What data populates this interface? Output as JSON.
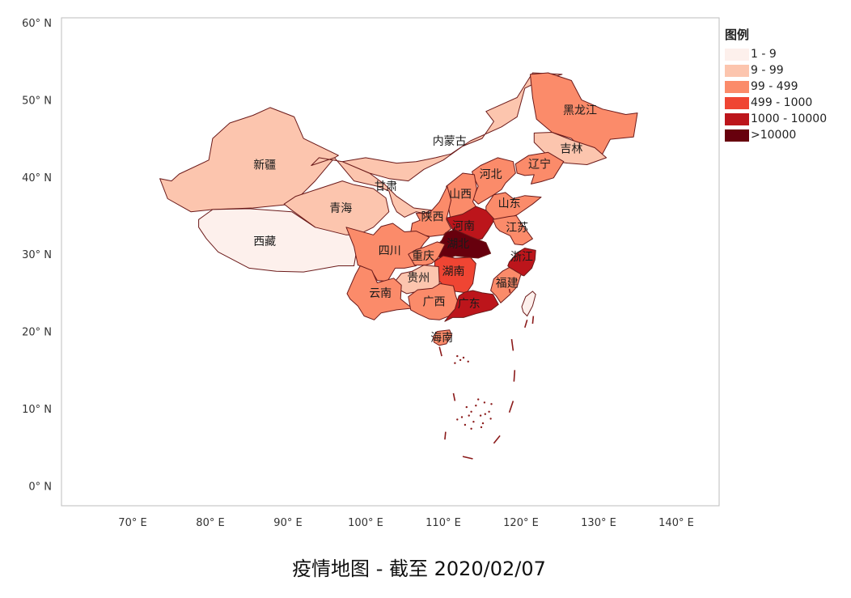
{
  "map": {
    "title": "疫情地图 - 截至 2020/02/07",
    "axes": {
      "x_ticks": [
        "70° E",
        "80° E",
        "90° E",
        "100° E",
        "110° E",
        "120° E",
        "130° E",
        "140° E"
      ],
      "y_ticks": [
        "60° N",
        "50° N",
        "40° N",
        "30° N",
        "20° N",
        "10° N",
        "0° N"
      ]
    },
    "legend": {
      "title": "图例",
      "items": [
        {
          "label": "1 - 9",
          "color": "#fdf0ec"
        },
        {
          "label": "9 - 99",
          "color": "#fcc5ae"
        },
        {
          "label": "99 - 499",
          "color": "#fb8b6a"
        },
        {
          "label": "499 - 1000",
          "color": "#ef4533"
        },
        {
          "label": "1000 - 10000",
          "color": "#bc151b"
        },
        {
          "label": ">10000",
          "color": "#67000d"
        }
      ]
    },
    "regions": [
      {
        "name": "新疆",
        "level": 1
      },
      {
        "name": "西藏",
        "level": 0
      },
      {
        "name": "青海",
        "level": 1
      },
      {
        "name": "甘肃",
        "level": 1
      },
      {
        "name": "内蒙古",
        "level": 1
      },
      {
        "name": "黑龙江",
        "level": 2
      },
      {
        "name": "吉林",
        "level": 1
      },
      {
        "name": "辽宁",
        "level": 2
      },
      {
        "name": "河北",
        "level": 2
      },
      {
        "name": "山西",
        "level": 2
      },
      {
        "name": "山东",
        "level": 2
      },
      {
        "name": "陕西",
        "level": 2
      },
      {
        "name": "河南",
        "level": 4
      },
      {
        "name": "江苏",
        "level": 2
      },
      {
        "name": "湖北",
        "level": 5
      },
      {
        "name": "四川",
        "level": 2
      },
      {
        "name": "重庆",
        "level": 2
      },
      {
        "name": "浙江",
        "level": 4
      },
      {
        "name": "湖南",
        "level": 3
      },
      {
        "name": "福建",
        "level": 2
      },
      {
        "name": "贵州",
        "level": 1
      },
      {
        "name": "云南",
        "level": 2
      },
      {
        "name": "广西",
        "level": 2
      },
      {
        "name": "广东",
        "level": 4
      },
      {
        "name": "海南",
        "level": 2
      }
    ]
  }
}
